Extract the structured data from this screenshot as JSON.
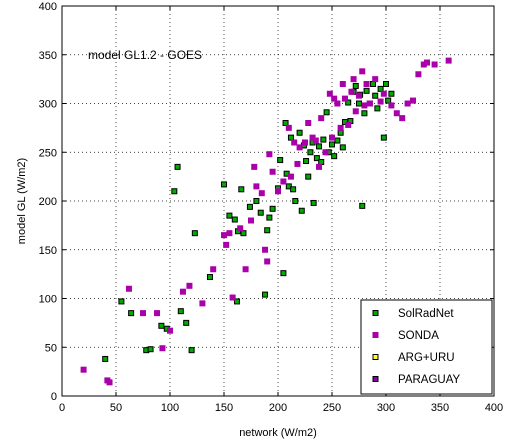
{
  "chart_data": {
    "type": "scatter",
    "title": "",
    "annotation": "model GL1.2 - GOES",
    "xlabel": "network (W/m2)",
    "ylabel": "model GL (W/m2)",
    "xlim": [
      0,
      400
    ],
    "ylim": [
      0,
      400
    ],
    "xticks": [
      0,
      50,
      100,
      150,
      200,
      250,
      300,
      350,
      400
    ],
    "yticks": [
      0,
      50,
      100,
      150,
      200,
      250,
      300,
      350,
      400
    ],
    "grid": true,
    "legend_position": "bottom-right",
    "series": [
      {
        "name": "SolRadNet",
        "color": "#00aa00",
        "edge": "#000000",
        "points": [
          [
            40,
            38
          ],
          [
            55,
            97
          ],
          [
            64,
            85
          ],
          [
            78,
            47
          ],
          [
            82,
            48
          ],
          [
            92,
            72
          ],
          [
            97,
            69
          ],
          [
            104,
            210
          ],
          [
            107,
            235
          ],
          [
            110,
            87
          ],
          [
            115,
            75
          ],
          [
            120,
            47
          ],
          [
            123,
            167
          ],
          [
            137,
            122
          ],
          [
            150,
            217
          ],
          [
            155,
            185
          ],
          [
            160,
            181
          ],
          [
            162,
            97
          ],
          [
            163,
            169
          ],
          [
            166,
            212
          ],
          [
            168,
            167
          ],
          [
            174,
            194
          ],
          [
            180,
            200
          ],
          [
            184,
            188
          ],
          [
            188,
            104
          ],
          [
            190,
            170
          ],
          [
            192,
            183
          ],
          [
            195,
            192
          ],
          [
            200,
            213
          ],
          [
            202,
            242
          ],
          [
            205,
            126
          ],
          [
            207,
            280
          ],
          [
            208,
            228
          ],
          [
            210,
            215
          ],
          [
            212,
            265
          ],
          [
            214,
            212
          ],
          [
            216,
            200
          ],
          [
            220,
            270
          ],
          [
            222,
            190
          ],
          [
            224,
            257
          ],
          [
            226,
            241
          ],
          [
            228,
            225
          ],
          [
            230,
            250
          ],
          [
            232,
            260
          ],
          [
            233,
            198
          ],
          [
            236,
            244
          ],
          [
            238,
            256
          ],
          [
            240,
            240
          ],
          [
            242,
            263
          ],
          [
            245,
            291
          ],
          [
            247,
            250
          ],
          [
            250,
            258
          ],
          [
            252,
            246
          ],
          [
            255,
            262
          ],
          [
            258,
            270
          ],
          [
            260,
            255
          ],
          [
            262,
            281
          ],
          [
            265,
            301
          ],
          [
            267,
            282
          ],
          [
            270,
            312
          ],
          [
            272,
            318
          ],
          [
            275,
            300
          ],
          [
            276,
            309
          ],
          [
            278,
            195
          ],
          [
            280,
            290
          ],
          [
            282,
            313
          ],
          [
            285,
            300
          ],
          [
            288,
            320
          ],
          [
            290,
            308
          ],
          [
            292,
            295
          ],
          [
            295,
            315
          ],
          [
            298,
            265
          ],
          [
            300,
            320
          ],
          [
            302,
            303
          ],
          [
            305,
            310
          ]
        ]
      },
      {
        "name": "SONDA",
        "color": "#aa00aa",
        "edge": "#aa00aa",
        "points": [
          [
            20,
            27
          ],
          [
            42,
            16
          ],
          [
            44,
            14
          ],
          [
            62,
            110
          ],
          [
            75,
            85
          ],
          [
            88,
            85
          ],
          [
            93,
            49
          ],
          [
            100,
            67
          ],
          [
            112,
            107
          ],
          [
            118,
            113
          ],
          [
            130,
            95
          ],
          [
            140,
            130
          ],
          [
            150,
            165
          ],
          [
            152,
            155
          ],
          [
            155,
            167
          ],
          [
            158,
            101
          ],
          [
            165,
            172
          ],
          [
            170,
            130
          ],
          [
            175,
            180
          ],
          [
            178,
            235
          ],
          [
            180,
            215
          ],
          [
            185,
            208
          ],
          [
            188,
            150
          ],
          [
            190,
            138
          ],
          [
            192,
            248
          ],
          [
            195,
            230
          ],
          [
            200,
            210
          ],
          [
            205,
            220
          ],
          [
            210,
            275
          ],
          [
            212,
            225
          ],
          [
            215,
            260
          ],
          [
            218,
            238
          ],
          [
            220,
            255
          ],
          [
            225,
            260
          ],
          [
            228,
            280
          ],
          [
            232,
            265
          ],
          [
            235,
            262
          ],
          [
            238,
            235
          ],
          [
            240,
            285
          ],
          [
            244,
            250
          ],
          [
            248,
            310
          ],
          [
            250,
            265
          ],
          [
            252,
            305
          ],
          [
            255,
            300
          ],
          [
            258,
            275
          ],
          [
            260,
            320
          ],
          [
            262,
            305
          ],
          [
            265,
            278
          ],
          [
            268,
            312
          ],
          [
            270,
            325
          ],
          [
            272,
            292
          ],
          [
            275,
            308
          ],
          [
            278,
            333
          ],
          [
            280,
            298
          ],
          [
            282,
            320
          ],
          [
            285,
            300
          ],
          [
            290,
            325
          ],
          [
            295,
            302
          ],
          [
            298,
            310
          ],
          [
            305,
            298
          ],
          [
            310,
            290
          ],
          [
            315,
            285
          ],
          [
            320,
            300
          ],
          [
            325,
            303
          ],
          [
            330,
            330
          ],
          [
            335,
            340
          ],
          [
            338,
            342
          ],
          [
            345,
            340
          ],
          [
            358,
            344
          ]
        ]
      },
      {
        "name": "ARG+URU",
        "color": "#ffff33",
        "edge": "#000000",
        "points": []
      },
      {
        "name": "PARAGUAY",
        "color": "#8800aa",
        "edge": "#000000",
        "points": []
      }
    ]
  }
}
